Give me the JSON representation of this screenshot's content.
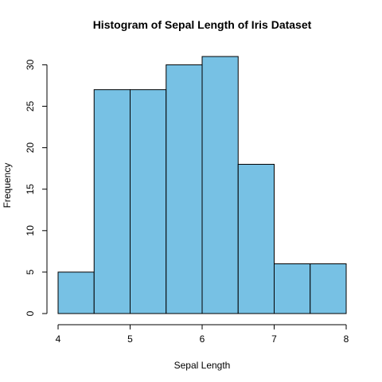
{
  "chart_data": {
    "type": "bar",
    "title": "Histogram of Sepal Length of Iris Dataset",
    "xlabel": "Sepal Length",
    "ylabel": "Frequency",
    "bins": [
      {
        "x0": 4.0,
        "x1": 4.5,
        "count": 5
      },
      {
        "x0": 4.5,
        "x1": 5.0,
        "count": 27
      },
      {
        "x0": 5.0,
        "x1": 5.5,
        "count": 27
      },
      {
        "x0": 5.5,
        "x1": 6.0,
        "count": 30
      },
      {
        "x0": 6.0,
        "x1": 6.5,
        "count": 31
      },
      {
        "x0": 6.5,
        "x1": 7.0,
        "count": 18
      },
      {
        "x0": 7.0,
        "x1": 7.5,
        "count": 6
      },
      {
        "x0": 7.5,
        "x1": 8.0,
        "count": 6
      }
    ],
    "xlim": [
      4,
      8
    ],
    "ylim": [
      0,
      31
    ],
    "xticks": [
      "4",
      "5",
      "6",
      "7",
      "8"
    ],
    "yticks": [
      "0",
      "5",
      "10",
      "15",
      "20",
      "25",
      "30"
    ],
    "bar_fill": "#77c1e4",
    "bar_stroke": "#000000",
    "grid": false
  }
}
